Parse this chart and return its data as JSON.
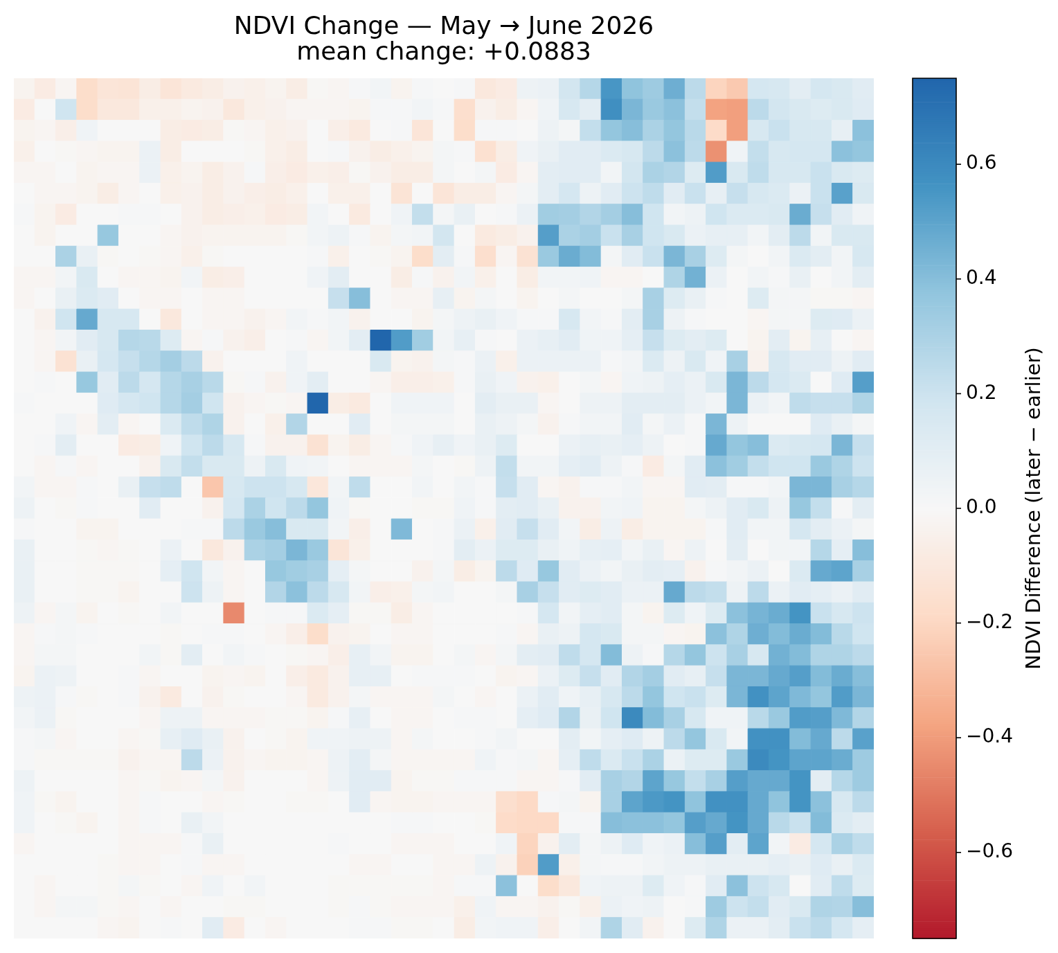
{
  "chart_data": {
    "type": "heatmap",
    "title": "NDVI Change — May → June 2026",
    "subtitle": "mean change: +0.0883",
    "clabel": "NDVI Difference (later − earlier)",
    "categories": [
      null,
      null,
      null,
      null,
      null,
      null,
      null,
      null,
      null,
      null,
      null,
      null,
      null,
      null,
      null,
      null,
      null,
      null,
      null,
      null,
      null,
      null,
      null,
      null,
      null,
      null,
      null,
      null,
      null,
      null,
      null,
      null,
      null,
      null,
      null,
      null,
      null,
      null,
      null,
      null,
      null
    ],
    "y_categories": [
      null,
      null,
      null,
      null,
      null,
      null,
      null,
      null,
      null,
      null,
      null,
      null,
      null,
      null,
      null,
      null,
      null,
      null,
      null,
      null,
      null,
      null,
      null,
      null,
      null,
      null,
      null,
      null,
      null,
      null,
      null,
      null,
      null,
      null,
      null,
      null,
      null,
      null,
      null,
      null,
      null
    ],
    "cells": [
      [
        -0.03,
        -0.08,
        -0.02,
        -0.17,
        -0.12,
        -0.13,
        -0.07,
        -0.12,
        -0.09,
        -0.07,
        -0.04,
        -0.05,
        -0.03,
        -0.07,
        -0.01,
        -0.02,
        0.01,
        0.03,
        -0.03,
        0.01,
        0,
        0.01,
        -0.1,
        -0.08,
        0.05,
        0.06,
        0.18,
        0.27,
        0.55,
        0.38,
        0.34,
        0.46,
        0.25,
        -0.21,
        -0.25,
        0.17,
        0.16,
        0.1,
        0.17,
        0.15,
        0.11
      ],
      [
        -0.08,
        0,
        0.19,
        -0.17,
        -0.1,
        -0.1,
        -0.05,
        -0.05,
        -0.03,
        -0.04,
        -0.1,
        -0.05,
        -0.04,
        -0.02,
        -0.02,
        -0.02,
        -0.03,
        0.01,
        0.01,
        0.03,
        0.01,
        -0.16,
        -0.04,
        -0.07,
        -0.02,
        0.04,
        0.16,
        0.1,
        0.58,
        0.43,
        0.35,
        0.39,
        0.23,
        -0.38,
        -0.39,
        0.25,
        0.18,
        0.15,
        0.13,
        0.15,
        0.12
      ],
      [
        -0.03,
        -0.02,
        -0.06,
        0.04,
        0,
        0,
        0,
        -0.07,
        -0.08,
        -0.07,
        -0.01,
        -0.02,
        -0.05,
        -0.04,
        0,
        -0.06,
        -0.09,
        0,
        0.01,
        -0.12,
        0,
        -0.17,
        0.01,
        0.01,
        0,
        0.05,
        0.02,
        0.23,
        0.37,
        0.4,
        0.3,
        0.37,
        0.26,
        -0.18,
        -0.39,
        0.16,
        0.21,
        0.16,
        0.16,
        0.08,
        0.39
      ],
      [
        -0.05,
        0,
        -0.01,
        -0.02,
        -0.03,
        -0.03,
        0.06,
        -0.07,
        0,
        0,
        0,
        -0.01,
        -0.05,
        -0.07,
        0,
        0.01,
        -0.04,
        -0.07,
        -0.05,
        -0.03,
        0.02,
        0.01,
        -0.15,
        -0.07,
        0.04,
        0.07,
        0.11,
        0.11,
        0.14,
        0.16,
        0.25,
        0.39,
        0.25,
        -0.43,
        0.04,
        0.23,
        0.16,
        0.17,
        0.17,
        0.39,
        0.37
      ],
      [
        -0.02,
        -0.02,
        0,
        -0.03,
        -0.02,
        -0.02,
        0.06,
        -0.05,
        -0.03,
        -0.07,
        -0.04,
        0.01,
        -0.06,
        -0.08,
        -0.05,
        -0.06,
        -0.01,
        -0.04,
        -0.07,
        -0.07,
        0.02,
        0,
        0.02,
        -0.08,
        -0.02,
        0.1,
        0.11,
        0.11,
        0.03,
        0.18,
        0.3,
        0.28,
        0.13,
        0.53,
        0.15,
        0.24,
        0.16,
        0.16,
        0.21,
        0.15,
        0.13
      ],
      [
        0,
        -0.02,
        -0.02,
        -0.03,
        -0.07,
        -0.02,
        0,
        -0.05,
        -0.04,
        -0.07,
        -0.04,
        -0.06,
        -0.07,
        -0.05,
        0,
        -0.05,
        -0.05,
        0,
        -0.13,
        0,
        -0.12,
        -0.07,
        -0.07,
        -0.02,
        0.02,
        0.1,
        0.17,
        0.05,
        0.11,
        0.2,
        0.24,
        0.11,
        0.21,
        0.08,
        0.22,
        0.16,
        0.14,
        0.06,
        0.21,
        0.51,
        0.15
      ],
      [
        0.01,
        -0.03,
        -0.08,
        0,
        0,
        0.01,
        0.01,
        0,
        -0.04,
        -0.07,
        -0.06,
        -0.05,
        -0.08,
        -0.07,
        0.03,
        0,
        -0.09,
        0,
        0.04,
        0.23,
        0.02,
        0.07,
        0,
        0.01,
        0.06,
        0.33,
        0.32,
        0.28,
        0.32,
        0.4,
        0.19,
        0.03,
        0.05,
        0.19,
        0.14,
        0.14,
        0.15,
        0.47,
        0.22,
        0.11,
        0.04
      ],
      [
        0,
        -0.03,
        0,
        0,
        0.36,
        0,
        0,
        -0.02,
        -0.04,
        -0.03,
        -0.03,
        -0.03,
        -0.03,
        -0.01,
        0.03,
        0.05,
        0.01,
        -0.03,
        0.02,
        0.03,
        0.18,
        0,
        -0.09,
        -0.07,
        -0.04,
        0.52,
        0.3,
        0.32,
        0.21,
        0.31,
        0.19,
        0.15,
        0.06,
        0.08,
        0.08,
        0.03,
        0.1,
        0.25,
        0.03,
        0.15,
        0.15
      ],
      [
        0,
        0,
        0.3,
        0.07,
        -0.01,
        0,
        -0.01,
        -0.02,
        -0.05,
        -0.01,
        0,
        0,
        0,
        0,
        0.01,
        -0.05,
        0,
        -0.01,
        -0.03,
        -0.17,
        0.1,
        0.01,
        -0.16,
        -0.02,
        -0.14,
        0.35,
        0.47,
        0.41,
        0.02,
        0.11,
        0.21,
        0.43,
        0.31,
        0.13,
        0.02,
        0,
        0.03,
        0.14,
        0.1,
        0.03,
        0.16
      ],
      [
        -0.02,
        -0.02,
        0.03,
        0.15,
        0,
        -0.02,
        -0.02,
        -0.03,
        0.03,
        -0.07,
        -0.06,
        0,
        0,
        0,
        0.04,
        0.1,
        0,
        0,
        -0.07,
        0.01,
        -0.04,
        0.03,
        -0.05,
        0,
        -0.07,
        0.03,
        0.03,
        0.04,
        -0.02,
        -0.02,
        0,
        0.29,
        0.45,
        0.06,
        0,
        0.03,
        0.01,
        0.07,
        0,
        0.03,
        0.1
      ],
      [
        -0.02,
        0,
        0.07,
        0.14,
        0.11,
        0,
        -0.02,
        -0.02,
        0,
        -0.02,
        -0.02,
        0,
        0,
        0,
        0,
        0.22,
        0.4,
        0,
        -0.02,
        -0.02,
        0.08,
        -0.03,
        0.02,
        0,
        -0.03,
        0,
        0.02,
        0,
        0,
        0.02,
        0.31,
        0.13,
        0.07,
        0.01,
        0,
        0.13,
        0.02,
        0.02,
        -0.01,
        -0.01,
        -0.02
      ],
      [
        0,
        -0.04,
        0.19,
        0.48,
        0.16,
        0.16,
        0,
        -0.1,
        0,
        -0.02,
        -0.02,
        -0.04,
        -0.02,
        0.03,
        0.01,
        0.03,
        -0.04,
        0,
        0,
        -0.03,
        0.02,
        0.05,
        0.07,
        0.04,
        0.01,
        0.01,
        0.16,
        0.03,
        0.01,
        0.1,
        0.31,
        0.05,
        0.01,
        0,
        0,
        -0.02,
        0.02,
        0.02,
        0.13,
        0.12,
        0.06
      ],
      [
        0,
        -0.02,
        0.03,
        0.11,
        0.16,
        0.27,
        0.26,
        0.13,
        -0.02,
        0.01,
        -0.04,
        -0.06,
        0,
        0.01,
        -0.02,
        0.03,
        0.1,
        0.75,
        0.53,
        0.33,
        0.03,
        0.08,
        0.01,
        0,
        0.06,
        0.08,
        0.11,
        0.04,
        0.04,
        0.09,
        0.22,
        0.13,
        0.1,
        0.13,
        0,
        -0.03,
        0.1,
        -0.03,
        0.08,
        0,
        -0.02
      ],
      [
        0,
        -0.02,
        -0.14,
        0.07,
        0.17,
        0.22,
        0.27,
        0.32,
        0.25,
        -0.04,
        0,
        0,
        0,
        0.04,
        0,
        0,
        0,
        0.15,
        -0.03,
        -0.04,
        0.02,
        0.01,
        0.06,
        -0.05,
        0.06,
        0.06,
        0.06,
        0.06,
        0.01,
        0.03,
        0.14,
        0.05,
        0.15,
        0.04,
        0.31,
        -0.04,
        0.16,
        0.11,
        0.11,
        0.05,
        0.11
      ],
      [
        0,
        0.01,
        0,
        0.36,
        0.11,
        0.25,
        0.17,
        0.27,
        0.31,
        0.26,
        -0.01,
        0.01,
        -0.04,
        0.04,
        0.1,
        0,
        0,
        -0.02,
        -0.06,
        -0.06,
        -0.05,
        0.01,
        0.07,
        0.04,
        -0.04,
        -0.05,
        0,
        0.02,
        -0.02,
        0.04,
        0.05,
        0.09,
        0.06,
        0.15,
        0.43,
        0.25,
        0.17,
        0.14,
        0,
        0.12,
        0.52
      ],
      [
        0.01,
        0,
        0,
        0,
        0.12,
        0.17,
        0.19,
        0.27,
        0.32,
        0.19,
        -0.04,
        -0.02,
        -0.01,
        -0.02,
        0.75,
        -0.07,
        -0.09,
        0,
        0.04,
        0.04,
        0.04,
        0,
        0.1,
        0.07,
        0.07,
        -0.02,
        0,
        0.05,
        0.05,
        0.1,
        0.1,
        0.1,
        0.06,
        0.03,
        0.43,
        0.06,
        0.03,
        0.24,
        0.22,
        0.22,
        0.29
      ],
      [
        0,
        0,
        0.04,
        -0.02,
        0.1,
        -0.02,
        0,
        0.14,
        0.24,
        0.29,
        -0.04,
        0,
        -0.05,
        0.28,
        0,
        0,
        0.11,
        0,
        0.02,
        0.02,
        0.02,
        0,
        0.07,
        0.05,
        0.02,
        -0.04,
        0.01,
        0.03,
        0.03,
        0.11,
        0.02,
        0.06,
        0.01,
        0.43,
        0.05,
        0,
        0,
        0,
        0.12,
        0.07,
        0.02
      ],
      [
        0,
        0.01,
        0.1,
        0,
        0,
        -0.08,
        -0.07,
        0.04,
        0.19,
        0.25,
        0.16,
        0.01,
        -0.04,
        -0.04,
        -0.14,
        -0.03,
        -0.07,
        -0.02,
        0.01,
        0.04,
        0.08,
        0.04,
        0.07,
        0.13,
        0,
        0,
        0.06,
        0.08,
        0.07,
        0.09,
        0.05,
        0,
        0.01,
        0.48,
        0.37,
        0.4,
        0.14,
        0.16,
        0.17,
        0.43,
        0.22
      ],
      [
        0,
        -0.02,
        0.01,
        -0.02,
        0,
        0,
        -0.04,
        0.15,
        0.23,
        0.15,
        0.15,
        0.05,
        0.15,
        0.04,
        0.03,
        0,
        -0.02,
        -0.02,
        -0.02,
        0.02,
        0,
        -0.01,
        0.05,
        0.23,
        0.03,
        0.03,
        0.09,
        0.11,
        0.05,
        0.01,
        -0.08,
        0.02,
        0.11,
        0.39,
        0.33,
        0.23,
        0.19,
        0.19,
        0.35,
        0.29,
        0.2
      ],
      [
        0.03,
        -0.02,
        -0.02,
        0.01,
        0,
        0.07,
        0.22,
        0.24,
        0,
        -0.26,
        0.16,
        0.2,
        0.2,
        0.16,
        -0.11,
        0.03,
        0.24,
        0,
        0,
        0.03,
        0,
        0.03,
        0.01,
        0.22,
        0.11,
        -0.02,
        -0.04,
        0.01,
        0.01,
        0.03,
        -0.02,
        -0.02,
        0.11,
        0.1,
        0.01,
        0.01,
        0.03,
        0.43,
        0.43,
        0.31,
        0.27
      ],
      [
        0.05,
        0,
        -0.01,
        0.01,
        0,
        0,
        0.11,
        0,
        0,
        -0.04,
        0.17,
        0.3,
        0.19,
        0.25,
        0.37,
        0.04,
        -0.01,
        0,
        0,
        -0.01,
        -0.01,
        0.04,
        0.01,
        0.1,
        0.11,
        0.07,
        -0.04,
        -0.04,
        0.03,
        0.04,
        -0.03,
        -0.03,
        0.02,
        0.05,
        0.11,
        0.15,
        0.05,
        0.36,
        0.23,
        0.01,
        0.1
      ],
      [
        0.01,
        0,
        0,
        -0.03,
        -0.03,
        0,
        0,
        0,
        0.01,
        0.01,
        0.25,
        0.35,
        0.4,
        0.15,
        0.15,
        0.03,
        -0.06,
        0,
        0.42,
        0,
        0.01,
        0.06,
        -0.05,
        0.11,
        0.22,
        0.11,
        0.03,
        -0.07,
        0.05,
        -0.07,
        -0.03,
        -0.03,
        -0.03,
        0.01,
        0.11,
        0.03,
        0.03,
        0.17,
        0.1,
        0.06,
        0.02
      ],
      [
        0.07,
        0,
        0,
        -0.01,
        -0.02,
        -0.01,
        0,
        0.06,
        0,
        -0.1,
        -0.04,
        0.3,
        0.32,
        0.43,
        0.35,
        -0.12,
        -0.05,
        0,
        0,
        0,
        0.01,
        0.1,
        0.06,
        0.13,
        0.13,
        0.07,
        0.04,
        0.08,
        0.09,
        0.03,
        0.07,
        -0.02,
        0.05,
        0,
        0.1,
        0,
        0.03,
        0.03,
        0.27,
        0.09,
        0.4
      ],
      [
        0.07,
        0,
        0,
        -0.01,
        -0.01,
        -0.01,
        0,
        0.09,
        0.19,
        0.03,
        -0.02,
        0,
        0.36,
        0.33,
        0.31,
        0.09,
        0.02,
        0,
        0,
        -0.04,
        0.02,
        -0.07,
        -0.03,
        0.25,
        0.12,
        0.36,
        0.11,
        0.06,
        0.03,
        0.07,
        0.1,
        0.09,
        -0.04,
        0.01,
        0.03,
        0.06,
        0,
        0.14,
        0.48,
        0.5,
        0.31
      ],
      [
        0.07,
        0,
        0,
        -0.01,
        -0.01,
        -0.03,
        0,
        0,
        0.2,
        0.05,
        -0.02,
        0,
        0.28,
        0.39,
        0.25,
        0.16,
        0.03,
        -0.06,
        -0.05,
        0.02,
        0.03,
        0,
        0,
        0.02,
        0.31,
        0.22,
        0.11,
        0.13,
        0.11,
        0.06,
        0.06,
        0.48,
        0.25,
        0.23,
        0.05,
        0.25,
        0.06,
        0.11,
        0.09,
        0.06,
        0.11
      ],
      [
        0.05,
        -0.02,
        0.02,
        -0.03,
        0,
        -0.01,
        0,
        0.03,
        0,
        0,
        -0.45,
        0,
        0.01,
        0.01,
        0.14,
        0.09,
        -0.01,
        -0.01,
        -0.07,
        -0.02,
        0,
        0,
        0,
        0,
        0.01,
        0.17,
        0.03,
        0.09,
        0.11,
        0.02,
        -0.03,
        0.13,
        0.04,
        0.13,
        0.39,
        0.44,
        0.47,
        0.56,
        0.21,
        0.16,
        0.2
      ],
      [
        -0.02,
        0.01,
        0.02,
        0.01,
        0,
        0,
        0,
        -0.01,
        0,
        0.01,
        0.01,
        0,
        -0.02,
        -0.06,
        -0.17,
        -0.04,
        -0.03,
        0,
        -0.02,
        -0.02,
        0,
        0,
        0,
        0.01,
        -0.02,
        0.07,
        0.05,
        0.17,
        0.15,
        0.02,
        0.02,
        -0.02,
        -0.03,
        0.39,
        0.29,
        0.46,
        0.41,
        0.47,
        0.41,
        0.26,
        0.19
      ],
      [
        -0.02,
        0.02,
        0.02,
        0,
        0,
        0,
        0.03,
        -0.01,
        0.1,
        0,
        0.03,
        0.01,
        0,
        -0.01,
        -0.02,
        -0.06,
        0.08,
        0.03,
        -0.03,
        -0.03,
        0,
        0.02,
        -0.02,
        0.02,
        0.1,
        0.11,
        0.24,
        0.17,
        0.41,
        0.05,
        0.01,
        0.27,
        0.37,
        0.2,
        0.31,
        0.16,
        0.45,
        0.41,
        0.29,
        0.29,
        0.25
      ],
      [
        -0.03,
        0.06,
        0.05,
        0,
        0,
        0.01,
        -0.02,
        0,
        0,
        -0.03,
        -0.02,
        -0.03,
        0,
        -0.06,
        -0.09,
        -0.04,
        0.08,
        0.08,
        0,
        0.01,
        0.01,
        0.01,
        0,
        -0.03,
        -0.02,
        0.06,
        0.13,
        0.22,
        0.11,
        0.28,
        0.32,
        0.11,
        0.08,
        0.22,
        0.43,
        0.43,
        0.48,
        0.52,
        0.41,
        0.47,
        0.4
      ],
      [
        0.05,
        0.06,
        0.01,
        -0.01,
        0,
        0.01,
        -0.04,
        -0.09,
        0,
        -0.04,
        -0.01,
        0,
        0,
        -0.02,
        -0.09,
        -0.04,
        0.02,
        -0.02,
        -0.02,
        -0.02,
        0.02,
        0,
        -0.02,
        0,
        0.06,
        0.11,
        0.04,
        0.08,
        0.16,
        0.25,
        0.37,
        0.19,
        0.21,
        0.13,
        0.43,
        0.57,
        0.5,
        0.42,
        0.37,
        0.53,
        0.43
      ],
      [
        0.03,
        0.06,
        -0.01,
        0,
        0,
        0,
        -0.02,
        0.05,
        0.05,
        -0.02,
        -0.02,
        -0.02,
        -0.01,
        -0.01,
        -0.03,
        0.01,
        0.08,
        0,
        -0.02,
        -0.02,
        0,
        0.01,
        0.01,
        0,
        0.09,
        0.12,
        0.28,
        0.07,
        0.19,
        0.6,
        0.41,
        0.31,
        0.16,
        0.04,
        0.04,
        0.26,
        0.35,
        0.53,
        0.52,
        0.42,
        0.28
      ],
      [
        0.01,
        0.02,
        -0.02,
        0,
        0,
        -0.02,
        -0.01,
        0.08,
        0.12,
        0.07,
        -0.04,
        0,
        -0.01,
        -0.03,
        0.04,
        0.04,
        0.05,
        0.05,
        -0.02,
        0.02,
        0,
        0,
        0.01,
        0.03,
        0,
        0,
        0.1,
        0.03,
        0.09,
        0.12,
        0.05,
        0.25,
        0.37,
        0.15,
        0.03,
        0.57,
        0.57,
        0.41,
        0.48,
        0.25,
        0.51
      ],
      [
        0.01,
        -0.01,
        -0.01,
        -0.01,
        -0.01,
        -0.04,
        -0.02,
        -0.02,
        0.25,
        0.06,
        -0.04,
        -0.02,
        -0.03,
        -0.03,
        -0.02,
        0.05,
        0.1,
        0.02,
        -0.02,
        -0.02,
        -0.02,
        -0.02,
        0.04,
        0.01,
        0.02,
        -0.02,
        0.09,
        0.24,
        0.14,
        0.21,
        0.3,
        0.06,
        0.13,
        0.13,
        0.35,
        0.6,
        0.56,
        0.5,
        0.5,
        0.47,
        0.34
      ],
      [
        0.05,
        0,
        0,
        0,
        0,
        -0.02,
        -0.01,
        -0.03,
        -0.02,
        0.02,
        -0.04,
        0,
        0,
        0,
        -0.02,
        0.05,
        0.11,
        0.11,
        -0.03,
        -0.01,
        -0.01,
        0.01,
        0.01,
        0.01,
        -0.02,
        -0.02,
        0.01,
        0.11,
        0.31,
        0.28,
        0.5,
        0.36,
        0.23,
        0.31,
        0.52,
        0.48,
        0.48,
        0.56,
        0.1,
        0.27,
        0.34
      ],
      [
        0.04,
        -0.01,
        -0.03,
        0,
        0,
        -0.02,
        0.01,
        0,
        0,
        -0.02,
        -0.01,
        0,
        0,
        -0.01,
        -0.01,
        0,
        0.11,
        -0.02,
        -0.03,
        -0.03,
        -0.02,
        -0.02,
        -0.02,
        -0.16,
        -0.19,
        0.01,
        0.02,
        -0.03,
        0.31,
        0.5,
        0.54,
        0.56,
        0.38,
        0.57,
        0.57,
        0.48,
        0.38,
        0.56,
        0.39,
        0.16,
        0.25
      ],
      [
        0.04,
        0,
        -0.01,
        -0.03,
        0,
        -0.02,
        0.01,
        0,
        0.07,
        0.03,
        0,
        0,
        0,
        0,
        0,
        0,
        0,
        0,
        0.01,
        0.01,
        0,
        0,
        -0.01,
        -0.18,
        -0.19,
        -0.19,
        0.01,
        0.01,
        0.4,
        0.39,
        0.39,
        0.37,
        0.52,
        0.48,
        0.56,
        0.48,
        0.26,
        0.21,
        0.41,
        0.14,
        0.1
      ],
      [
        -0.02,
        0,
        0,
        0,
        0,
        -0.02,
        -0.02,
        -0.02,
        0.01,
        0.07,
        0,
        0,
        0,
        0,
        0,
        0.01,
        0,
        0,
        -0.02,
        -0.02,
        -0.02,
        0,
        0,
        0.04,
        -0.21,
        -0.04,
        0.1,
        0.02,
        0.05,
        0.12,
        0.04,
        0.06,
        0.4,
        0.52,
        0.1,
        0.5,
        0.03,
        -0.08,
        0.17,
        0.3,
        0.24
      ],
      [
        0,
        0,
        0,
        0,
        -0.01,
        -0.02,
        -0.02,
        0,
        0.01,
        -0.02,
        -0.02,
        0,
        0,
        0,
        0,
        0,
        -0.02,
        -0.02,
        0,
        0,
        -0.02,
        -0.02,
        0.05,
        -0.04,
        -0.22,
        0.53,
        -0.05,
        0.02,
        0.01,
        0.01,
        0.03,
        0.05,
        0.05,
        0.07,
        0.07,
        0.07,
        0.09,
        0.07,
        0.12,
        0.07,
        0.14
      ],
      [
        0,
        -0.02,
        0,
        0,
        -0.01,
        0.02,
        -0.01,
        0,
        -0.02,
        0.04,
        0,
        0.03,
        0,
        0,
        0,
        -0.01,
        -0.01,
        -0.01,
        -0.01,
        -0.01,
        -0.02,
        0.01,
        0.01,
        0.39,
        0,
        -0.17,
        -0.1,
        0.04,
        0.05,
        0.05,
        0.13,
        0.04,
        0.01,
        0.11,
        0.39,
        0.2,
        0.16,
        0,
        0.11,
        0.24,
        0.13
      ],
      [
        0,
        -0.02,
        0.02,
        0.02,
        -0.01,
        -0.02,
        0,
        -0.02,
        0,
        0,
        -0.01,
        -0.01,
        0,
        0,
        0,
        -0.01,
        0.01,
        -0.01,
        -0.02,
        -0.02,
        -0.02,
        -0.05,
        0.04,
        -0.02,
        -0.02,
        -0.04,
        -0.01,
        -0.05,
        0.06,
        0.04,
        0.05,
        0,
        0.01,
        0.34,
        0.2,
        0.23,
        0.11,
        0.15,
        0.29,
        0.28,
        0.4
      ],
      [
        0,
        0,
        0,
        0,
        -0.02,
        -0.03,
        0,
        0.01,
        0,
        0.11,
        -0.08,
        0,
        -0.02,
        0,
        0,
        0,
        0.01,
        0.01,
        -0.01,
        -0.01,
        0,
        -0.07,
        0.03,
        0.04,
        0.04,
        -0.06,
        0,
        0.03,
        0.29,
        0.11,
        -0.04,
        0,
        0.13,
        0.29,
        0.06,
        0.06,
        0.1,
        0.21,
        0.25,
        0.17,
        0.09
      ]
    ],
    "clim": [
      -0.75,
      0.75
    ],
    "cticks": [
      {
        "value": -0.6,
        "label": "−0.6"
      },
      {
        "value": -0.4,
        "label": "−0.4"
      },
      {
        "value": -0.2,
        "label": "−0.2"
      },
      {
        "value": 0,
        "label": "0.0"
      },
      0.2,
      0.4,
      0.6
    ],
    "tick_labels": false
  }
}
